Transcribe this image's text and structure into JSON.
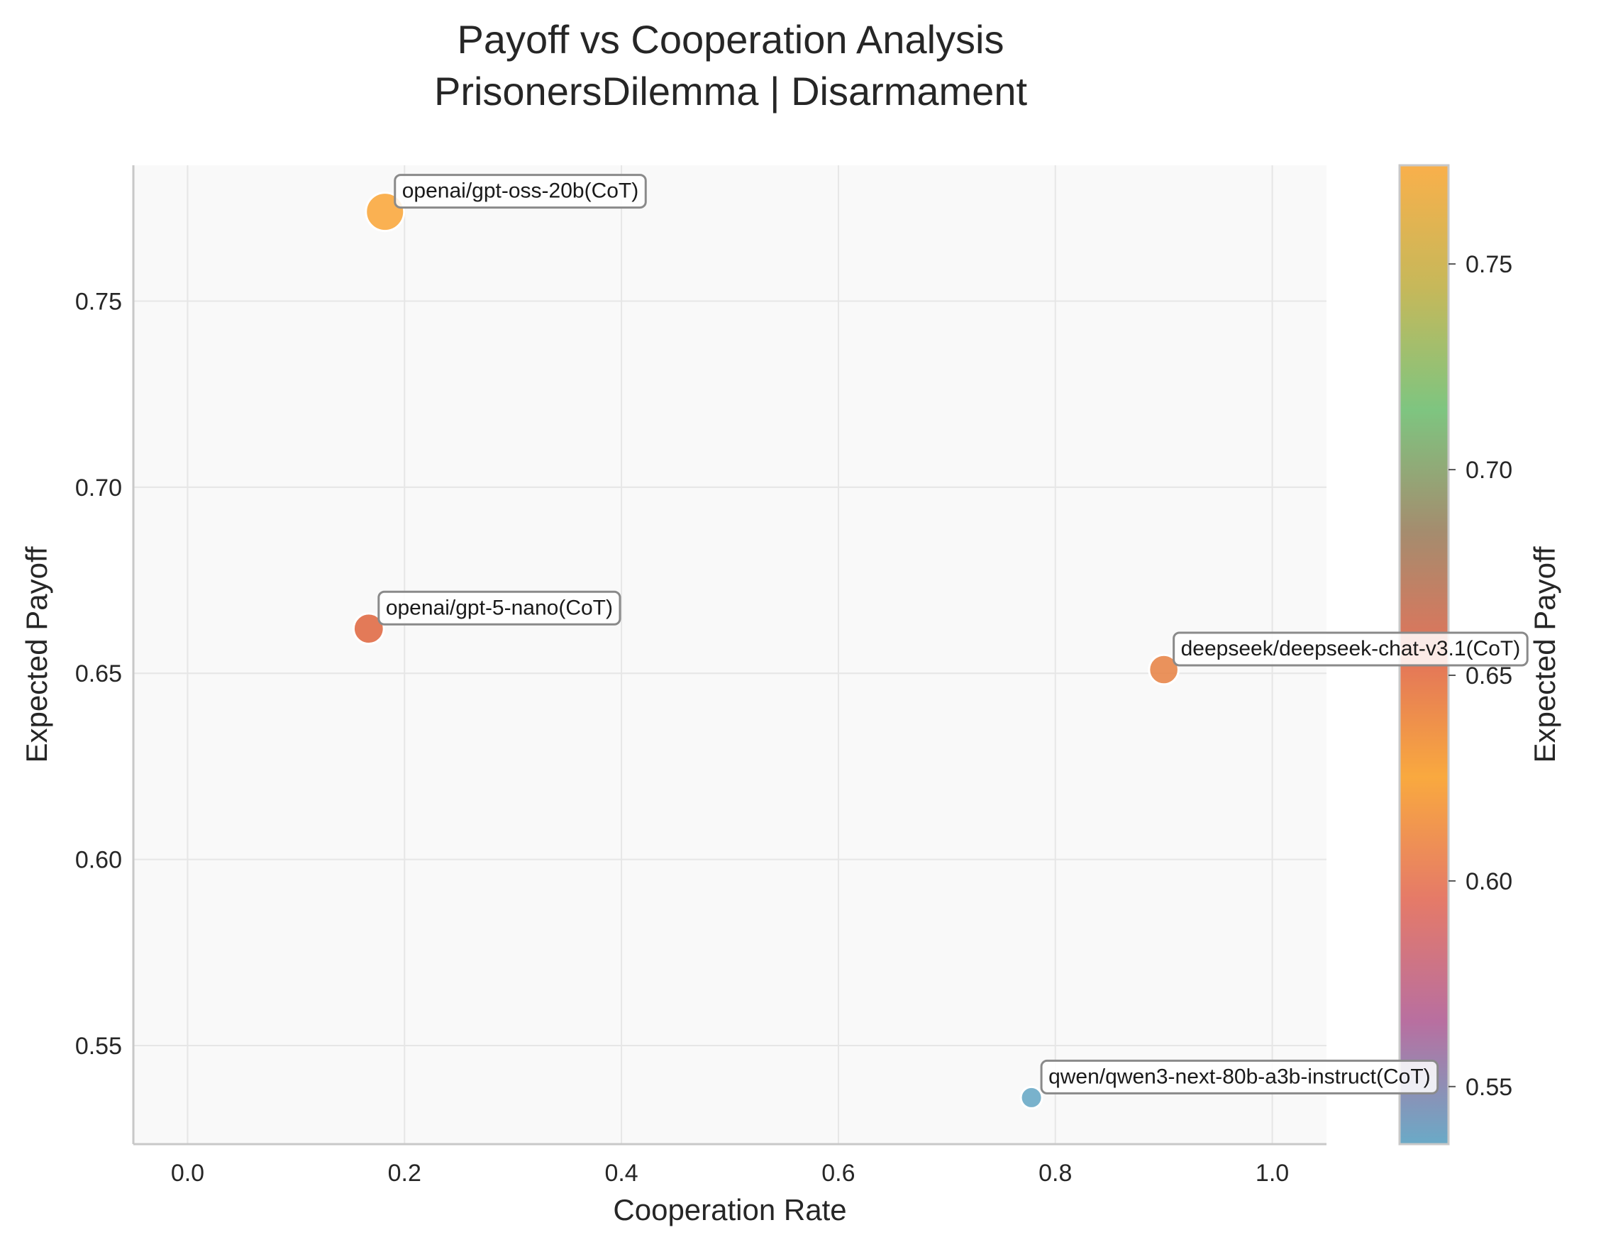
{
  "chart_data": {
    "type": "scatter",
    "title": "Payoff vs Cooperation Analysis",
    "subtitle": "PrisonersDilemma | Disarmament",
    "xlabel": "Cooperation Rate",
    "ylabel": "Expected Payoff",
    "xlim": [
      -0.05,
      1.05
    ],
    "ylim": [
      0.5235,
      0.7865
    ],
    "xticks": [
      "0.0",
      "0.2",
      "0.4",
      "0.6",
      "0.8",
      "1.0"
    ],
    "yticks": [
      "0.55",
      "0.60",
      "0.65",
      "0.70",
      "0.75"
    ],
    "grid": true,
    "points": [
      {
        "label": "openai/gpt-oss-20b(CoT)",
        "x": 0.182,
        "y": 0.774,
        "color": "#f9a93f"
      },
      {
        "label": "openai/gpt-5-nano(CoT)",
        "x": 0.167,
        "y": 0.662,
        "color": "#e06c46"
      },
      {
        "label": "deepseek/deepseek-chat-v3.1(CoT)",
        "x": 0.9,
        "y": 0.651,
        "color": "#e8864a"
      },
      {
        "label": "qwen/qwen3-next-80b-a3b-instruct(CoT)",
        "x": 0.778,
        "y": 0.536,
        "color": "#6aaac7"
      }
    ],
    "colorbar": {
      "label": "Expected Payoff",
      "range": [
        0.536,
        0.774
      ],
      "ticks": [
        "0.55",
        "0.60",
        "0.65",
        "0.70",
        "0.75"
      ],
      "colors": [
        "#6aaac7",
        "#b86fa0",
        "#e57a68",
        "#f9a93f",
        "#e2735a",
        "#a58c6e",
        "#7ec580",
        "#c6b85a",
        "#f9b04b"
      ]
    }
  }
}
